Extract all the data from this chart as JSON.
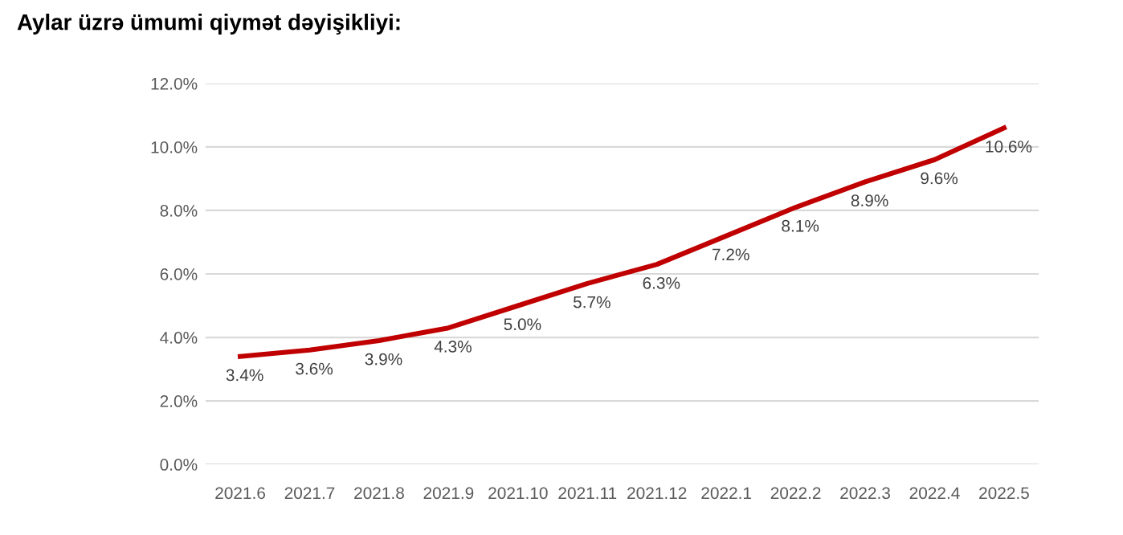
{
  "chart_data": {
    "type": "line",
    "title": "Aylar üzrə ümumi qiymət dəyişikliyi:",
    "categories": [
      "2021.6",
      "2021.7",
      "2021.8",
      "2021.9",
      "2021.10",
      "2021.11",
      "2021.12",
      "2022.1",
      "2022.2",
      "2022.3",
      "2022.4",
      "2022.5"
    ],
    "series": [
      {
        "color": "#c00000",
        "values": [
          3.4,
          3.6,
          3.9,
          4.3,
          5.0,
          5.7,
          6.3,
          7.2,
          8.1,
          8.9,
          9.6,
          10.6
        ],
        "value_labels": [
          "3.4%",
          "3.6%",
          "3.9%",
          "4.3%",
          "5.0%",
          "5.7%",
          "6.3%",
          "7.2%",
          "8.1%",
          "8.9%",
          "9.6%",
          "10.6%"
        ]
      }
    ],
    "ylim": [
      0,
      12
    ],
    "yticks": [
      {
        "value": 0,
        "label": "0.0%"
      },
      {
        "value": 2,
        "label": "2.0%"
      },
      {
        "value": 4,
        "label": "4.0%"
      },
      {
        "value": 6,
        "label": "6.0%"
      },
      {
        "value": 8,
        "label": "8.0%"
      },
      {
        "value": 10,
        "label": "10.0%"
      },
      {
        "value": 12,
        "label": "12.0%"
      }
    ],
    "grid": "y",
    "legend": false,
    "marker": "none",
    "line_style": "solid"
  }
}
